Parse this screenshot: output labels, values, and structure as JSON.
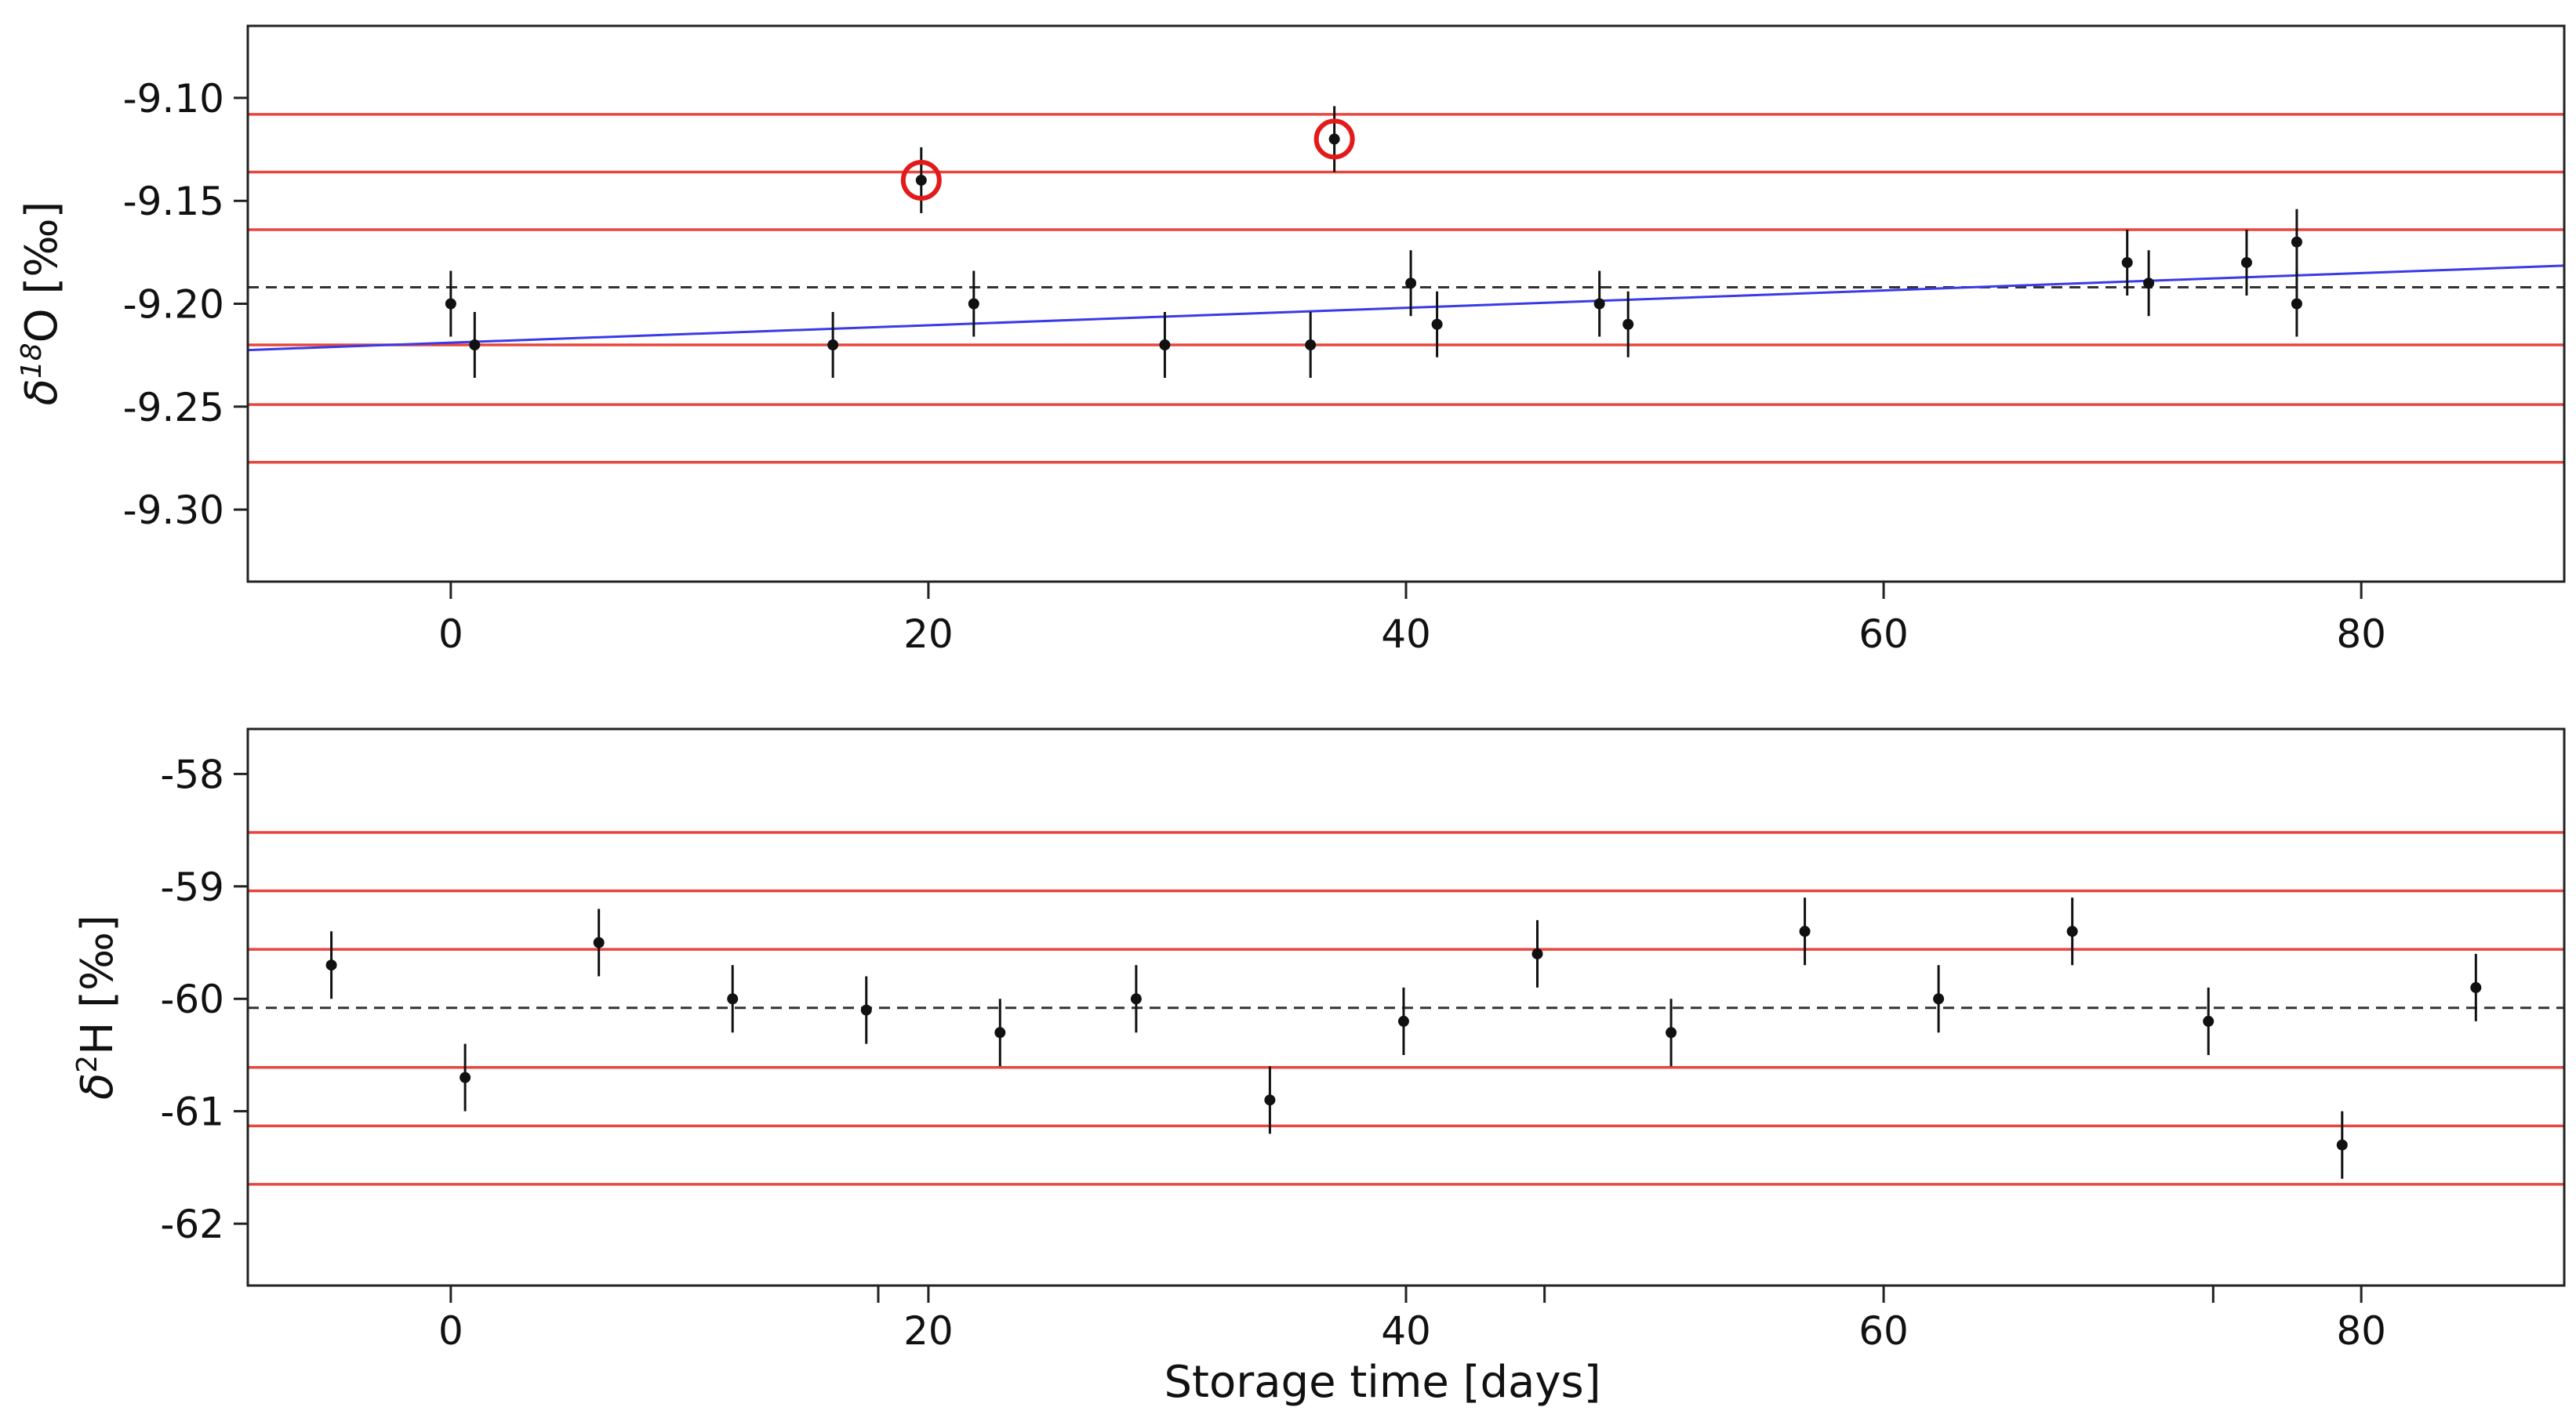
{
  "chart_data": [
    {
      "type": "scatter",
      "id": "d18O",
      "ylabel": {
        "symbol": "δ",
        "sup": "18",
        "element": "O",
        "unit": "[‰]"
      },
      "xlabel": "",
      "xlim": [
        -8.5,
        88.5
      ],
      "ylim": [
        -9.335,
        -9.065
      ],
      "x_ticks": [
        0,
        20,
        40,
        60,
        80
      ],
      "y_ticks": [
        -9.1,
        -9.15,
        -9.2,
        -9.25,
        -9.3
      ],
      "y_tick_labels": [
        "-9.10",
        "-9.15",
        "-9.20",
        "-9.25",
        "-9.30"
      ],
      "mean": -9.192,
      "sigma_lines": [
        -9.108,
        -9.136,
        -9.164,
        -9.22,
        -9.249,
        -9.277
      ],
      "trend": {
        "x0": -8.5,
        "y0": -9.2225,
        "x1": 88.5,
        "y1": -9.1815
      },
      "points": [
        {
          "x": 0.0,
          "y": -9.2,
          "err": 0.016
        },
        {
          "x": 1.0,
          "y": -9.22,
          "err": 0.016
        },
        {
          "x": 16.0,
          "y": -9.22,
          "err": 0.016
        },
        {
          "x": 19.7,
          "y": -9.14,
          "err": 0.016,
          "outlier": true
        },
        {
          "x": 21.9,
          "y": -9.2,
          "err": 0.016
        },
        {
          "x": 29.9,
          "y": -9.22,
          "err": 0.016
        },
        {
          "x": 36.0,
          "y": -9.22,
          "err": 0.016
        },
        {
          "x": 37.0,
          "y": -9.12,
          "err": 0.016,
          "outlier": true
        },
        {
          "x": 40.2,
          "y": -9.19,
          "err": 0.016
        },
        {
          "x": 41.3,
          "y": -9.21,
          "err": 0.016
        },
        {
          "x": 48.1,
          "y": -9.2,
          "err": 0.016
        },
        {
          "x": 49.3,
          "y": -9.21,
          "err": 0.016
        },
        {
          "x": 70.2,
          "y": -9.18,
          "err": 0.016
        },
        {
          "x": 71.1,
          "y": -9.19,
          "err": 0.016
        },
        {
          "x": 75.2,
          "y": -9.18,
          "err": 0.016
        },
        {
          "x": 77.3,
          "y": -9.17,
          "err": 0.016
        },
        {
          "x": 77.3,
          "y": -9.2,
          "err": 0.016
        }
      ],
      "colors": {
        "sigma": "#e8473f",
        "trend": "#3a3ae8",
        "mean": "#333333",
        "point": "#111111",
        "outlier": "#e31a1c"
      }
    },
    {
      "type": "scatter",
      "id": "d2H",
      "ylabel": {
        "symbol": "δ",
        "sup": "2",
        "element": "H",
        "unit": "[‰]"
      },
      "xlabel": "Storage time  [days]",
      "xlim": [
        -8.5,
        88.5
      ],
      "ylim": [
        -62.55,
        -57.6
      ],
      "x_ticks": [
        0,
        20,
        40,
        60,
        80
      ],
      "y_ticks": [
        -58,
        -59,
        -60,
        -61,
        -62
      ],
      "y_tick_labels": [
        "-58",
        "-59",
        "-60",
        "-61",
        "-62"
      ],
      "minor_x_ticks": [
        17.9,
        45.8,
        73.8
      ],
      "mean": -60.08,
      "sigma_lines": [
        -58.52,
        -59.04,
        -59.56,
        -60.61,
        -61.13,
        -61.65
      ],
      "points": [
        {
          "x": -5.0,
          "y": -59.7,
          "err": 0.3
        },
        {
          "x": 0.6,
          "y": -60.7,
          "err": 0.3
        },
        {
          "x": 6.2,
          "y": -59.5,
          "err": 0.3
        },
        {
          "x": 11.8,
          "y": -60.0,
          "err": 0.3
        },
        {
          "x": 17.4,
          "y": -60.1,
          "err": 0.3
        },
        {
          "x": 23.0,
          "y": -60.3,
          "err": 0.3
        },
        {
          "x": 28.7,
          "y": -60.0,
          "err": 0.3
        },
        {
          "x": 34.3,
          "y": -60.9,
          "err": 0.3
        },
        {
          "x": 39.9,
          "y": -60.2,
          "err": 0.3
        },
        {
          "x": 45.5,
          "y": -59.6,
          "err": 0.3
        },
        {
          "x": 51.1,
          "y": -60.3,
          "err": 0.3
        },
        {
          "x": 56.7,
          "y": -59.4,
          "err": 0.3
        },
        {
          "x": 62.3,
          "y": -60.0,
          "err": 0.3
        },
        {
          "x": 67.9,
          "y": -59.4,
          "err": 0.3
        },
        {
          "x": 73.6,
          "y": -60.2,
          "err": 0.3
        },
        {
          "x": 79.2,
          "y": -61.3,
          "err": 0.3
        },
        {
          "x": 84.8,
          "y": -59.9,
          "err": 0.3
        }
      ],
      "colors": {
        "sigma": "#e8473f",
        "mean": "#333333",
        "point": "#111111"
      }
    }
  ]
}
